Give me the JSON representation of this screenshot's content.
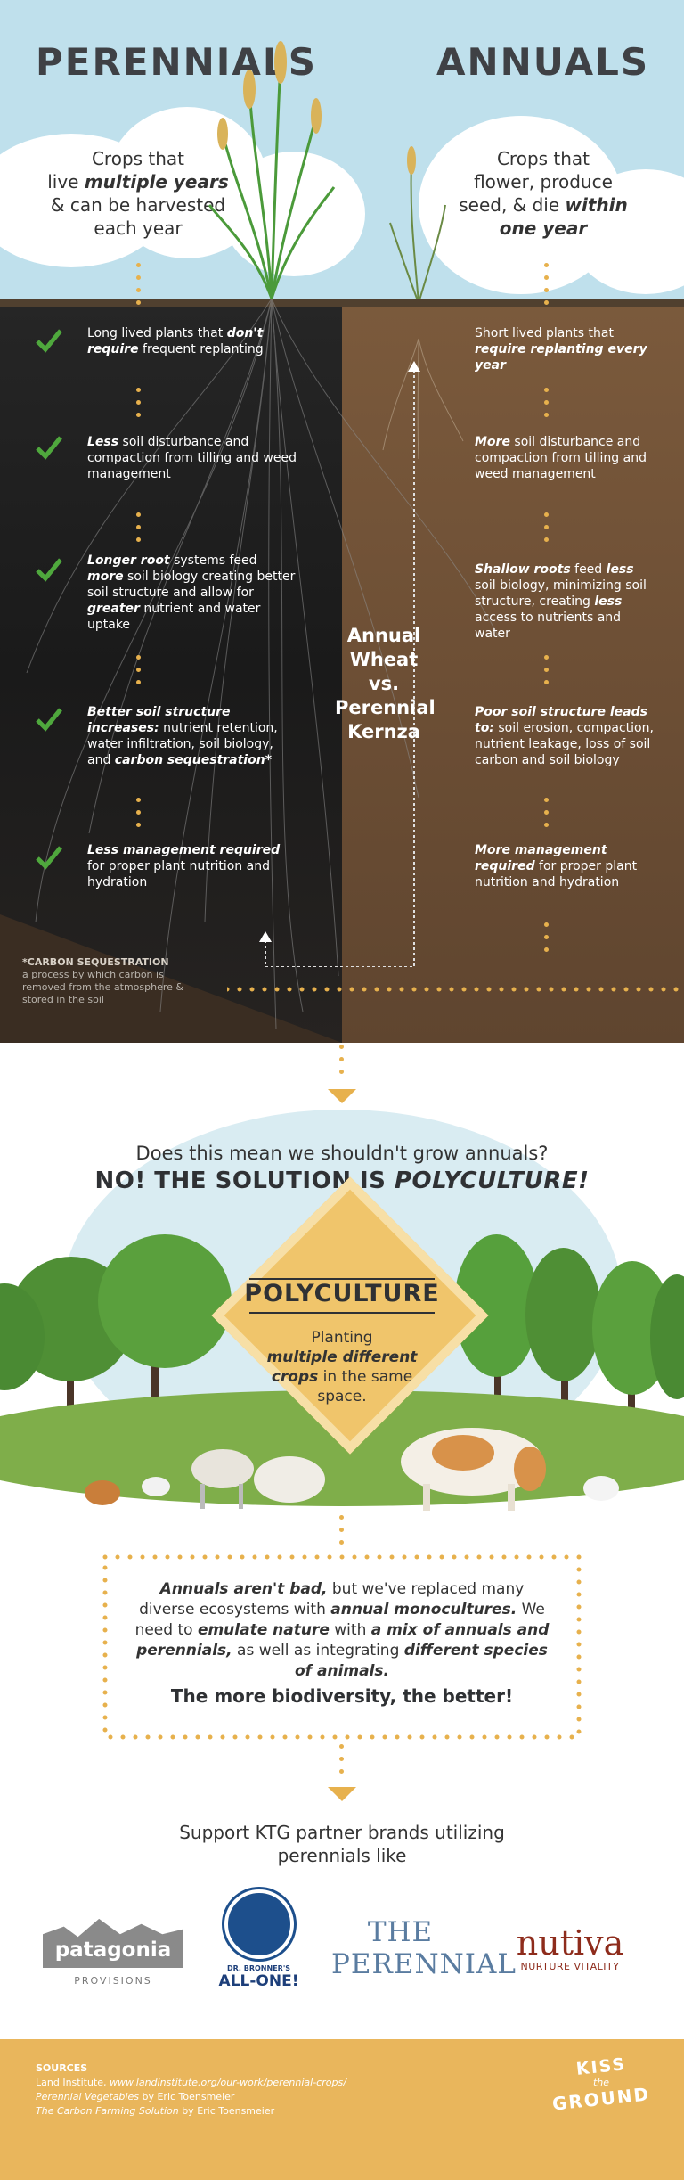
{
  "header": {
    "left_title": "PERENNIALS",
    "right_title": "ANNUALS",
    "left_lead": [
      "Crops that",
      "live ",
      "multiple years",
      "& can be harvested",
      "each year"
    ],
    "right_lead": [
      "Crops that",
      "flower, produce",
      "seed, & die ",
      "within",
      "one year"
    ]
  },
  "perennial_points": [
    {
      "a": "Long lived plants that ",
      "b": "don't require",
      "c": " frequent replanting"
    },
    {
      "a": "",
      "b": "Less",
      "c": " soil disturbance and compaction from tilling and weed management"
    },
    {
      "a": "",
      "b": "Longer root",
      "c": " systems feed ",
      "d": "more",
      "e": " soil biology creating better soil structure and allow for ",
      "f": "greater",
      "g": " nutrient and water uptake"
    },
    {
      "a": "",
      "b": "Better soil structure increases:",
      "c": " nutrient retention, water infiltration, soil biology, and ",
      "d": "carbon sequestration*",
      "e": ""
    },
    {
      "a": "",
      "b": "Less management required",
      "c": " for proper plant nutrition and hydration"
    }
  ],
  "annual_points": [
    {
      "a": "Short lived plants that ",
      "b": "require replanting every year",
      "c": ""
    },
    {
      "a": "",
      "b": "More",
      "c": " soil disturbance and compaction from tilling and weed management"
    },
    {
      "a": "",
      "b": "Shallow roots",
      "c": " feed ",
      "d": "less",
      "e": " soil biology, minimizing soil structure, creating ",
      "f": "less",
      "g": " access to nutrients and water"
    },
    {
      "a": "",
      "b": "Poor soil structure leads to:",
      "c": " soil erosion, compaction, nutrient leakage, loss of soil carbon and soil biology",
      "d": "",
      "e": ""
    },
    {
      "a": "",
      "b": "More management required",
      "c": " for proper plant nutrition and hydration"
    }
  ],
  "middle_label": [
    "Annual",
    "Wheat",
    "vs.",
    "Perennial",
    "Kernza"
  ],
  "footnote": {
    "title": "*CARBON SEQUESTRATION",
    "text": "a process by which carbon is removed from the atmosphere & stored in the soil"
  },
  "polyculture": {
    "question": "Does this mean we shouldn't grow annuals?",
    "answer_pre": "NO! THE SOLUTION IS ",
    "answer_em": "POLYCULTURE!",
    "title": "POLYCULTURE",
    "desc_1": "Planting",
    "desc_2": "multiple different crops",
    "desc_3": " in the same space."
  },
  "box": {
    "p1": "Annuals aren't bad,",
    "p2": " but we've replaced many diverse ecosystems with ",
    "p3": "annual monocultures.",
    "p4": " We need to ",
    "p5": "emulate nature",
    "p6": " with ",
    "p7": "a mix of annuals and perennials,",
    "p8": " as well as integrating ",
    "p9": "different species of animals.",
    "strong": "The more biodiversity, the better!"
  },
  "support_text": "Support KTG partner brands utilizing perennials like",
  "logos": {
    "patagonia": "patagonia",
    "patagonia_sub": "PROVISIONS",
    "bronner_1": "DR. BRONNER'S",
    "bronner_2": "ALL-ONE!",
    "perennial": "THE PERENNIAL",
    "nutiva": "nutiva",
    "nutiva_sub": "NURTURE VITALITY"
  },
  "footer": {
    "sources_title": "SOURCES",
    "s1_pre": "Land Institute, ",
    "s1_url": "www.landinstitute.org/our-work/perennial-crops/",
    "s2_title": "Perennial Vegetables",
    "s2_by": " by Eric Toensmeier",
    "s3_title": "The Carbon Farming Solution",
    "s3_by": " by Eric Toensmeier",
    "brand_1": "KISS",
    "brand_2": "the",
    "brand_3": "GROUND"
  },
  "colors": {
    "accent": "#e7b14d",
    "check": "#4fa83d",
    "soil_dark": "#1d1d1d",
    "soil_brown": "#6d4f35",
    "footer": "#e9b65c"
  }
}
